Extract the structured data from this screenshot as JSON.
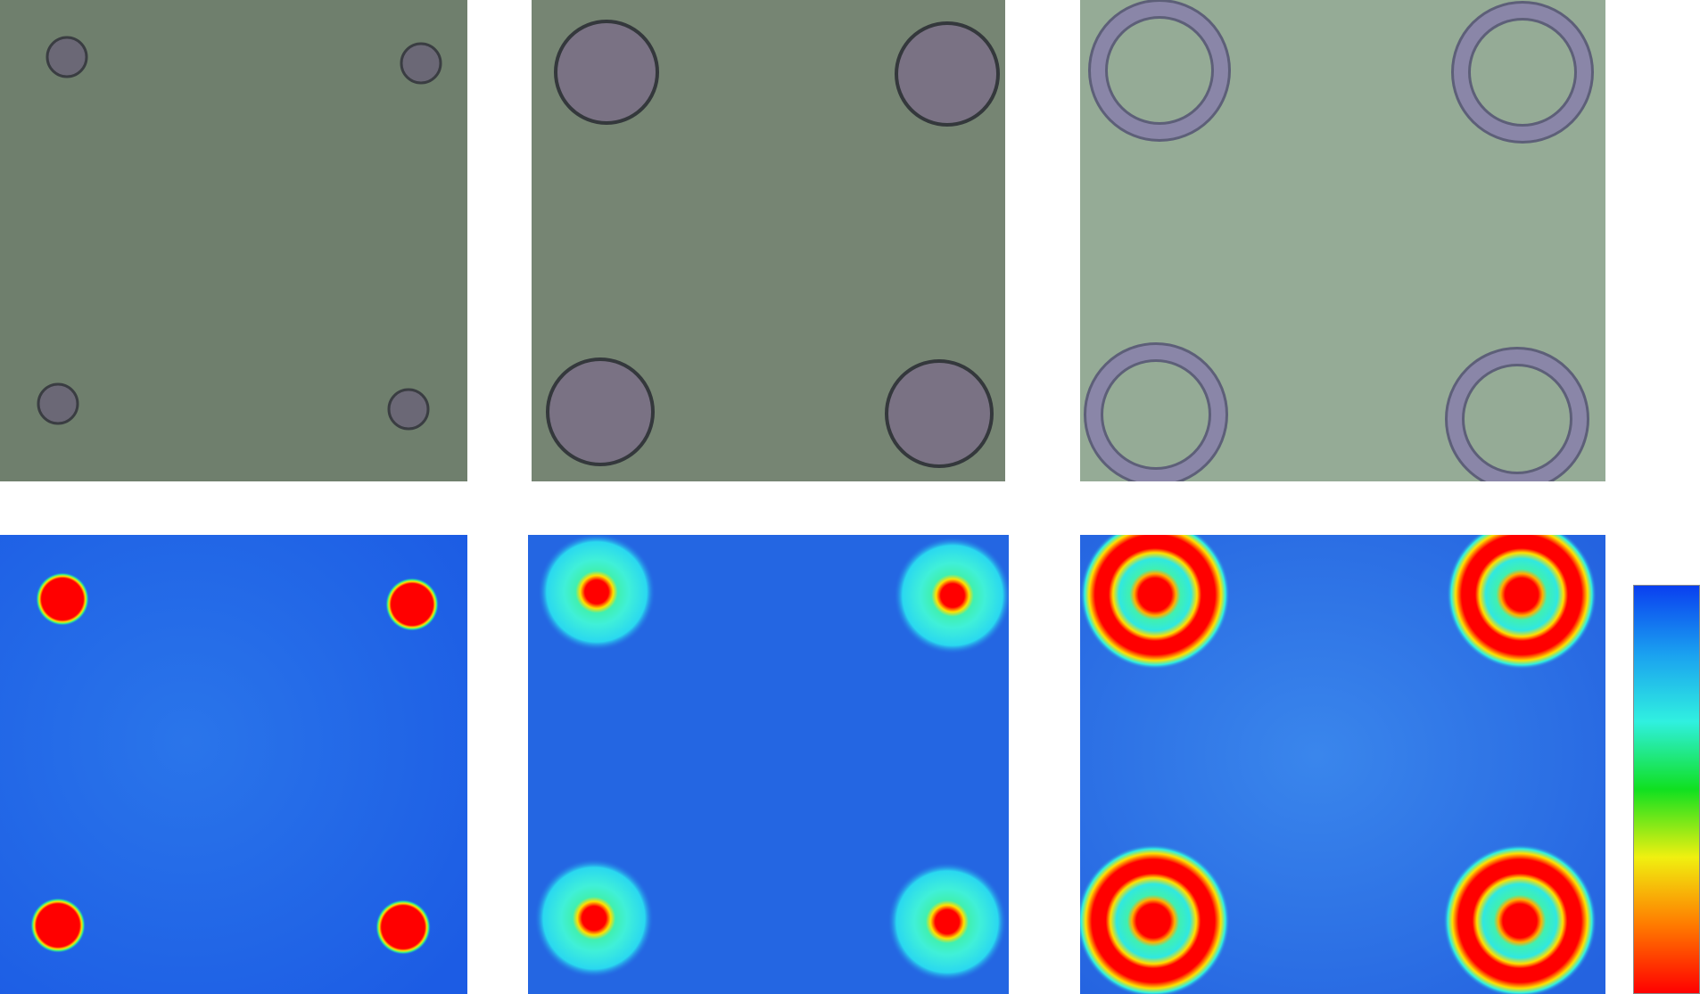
{
  "figure": {
    "micrographs": [
      {
        "name": "micrograph-small-dots",
        "pattern": "small-dots",
        "background_color": "#6f7f6d",
        "feature_color": "#6b6876",
        "feature_edge_color": "#3a3d42"
      },
      {
        "name": "micrograph-large-disks",
        "pattern": "large-disks",
        "background_color": "#768573",
        "feature_color": "#7a7284",
        "feature_edge_color": "#34383c"
      },
      {
        "name": "micrograph-rings",
        "pattern": "rings",
        "background_color": "#95ab96",
        "feature_color": "#8a86a8",
        "feature_edge_color": "#5d5f78"
      }
    ],
    "heatmaps": [
      {
        "name": "heatmap-small-dots",
        "pattern": "small-dots",
        "background_color": "#1f63e6"
      },
      {
        "name": "heatmap-large-disks",
        "pattern": "large-disks",
        "background_color": "#2466e2"
      },
      {
        "name": "heatmap-rings",
        "pattern": "rings",
        "background_color": "#2a6ae0"
      }
    ],
    "colorbar": {
      "orientation": "vertical",
      "stops": [
        "#0a3ff0",
        "#1aa0f0",
        "#30f0e0",
        "#10e020",
        "#f0f010",
        "#ff7a00",
        "#ff0000"
      ]
    }
  }
}
